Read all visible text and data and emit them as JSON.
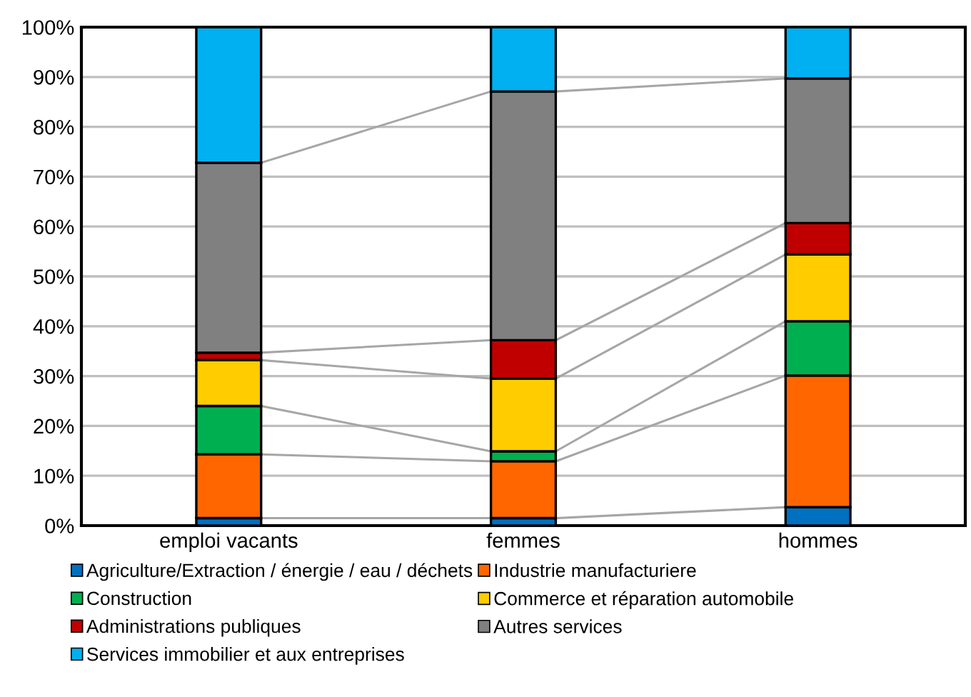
{
  "chart_data": {
    "type": "bar",
    "stacked": true,
    "categories": [
      "emploi vacants",
      "femmes",
      "hommes"
    ],
    "series": [
      {
        "name": "Agriculture/Extraction / énergie / eau / déchets",
        "color": "#0070c0",
        "values": [
          1.5,
          1.5,
          3.7
        ]
      },
      {
        "name": "Industrie manufacturiere",
        "color": "#ff6600",
        "values": [
          12.8,
          11.4,
          26.4
        ]
      },
      {
        "name": "Construction",
        "color": "#00b050",
        "values": [
          9.7,
          2.0,
          10.9
        ]
      },
      {
        "name": "Commerce et réparation automobile",
        "color": "#ffcc00",
        "values": [
          9.2,
          14.6,
          13.4
        ]
      },
      {
        "name": "Administrations publiques",
        "color": "#c00000",
        "values": [
          1.5,
          7.7,
          6.3
        ]
      },
      {
        "name": "Autres services",
        "color": "#808080",
        "values": [
          38.1,
          49.9,
          29.0
        ]
      },
      {
        "name": "Services immobilier et aux entreprises",
        "color": "#00b0f0",
        "values": [
          27.2,
          12.9,
          10.3
        ]
      }
    ],
    "ylim": [
      0,
      100
    ],
    "yticks": [
      {
        "value": 0,
        "label": "0%"
      },
      {
        "value": 10,
        "label": "10%"
      },
      {
        "value": 20,
        "label": "20%"
      },
      {
        "value": 30,
        "label": "30%"
      },
      {
        "value": 40,
        "label": "40%"
      },
      {
        "value": 50,
        "label": "50%"
      },
      {
        "value": 60,
        "label": "60%"
      },
      {
        "value": 70,
        "label": "70%"
      },
      {
        "value": 80,
        "label": "80%"
      },
      {
        "value": 90,
        "label": "90%"
      },
      {
        "value": 100,
        "label": "100%"
      }
    ],
    "grid": "y",
    "legend": "bottom"
  }
}
